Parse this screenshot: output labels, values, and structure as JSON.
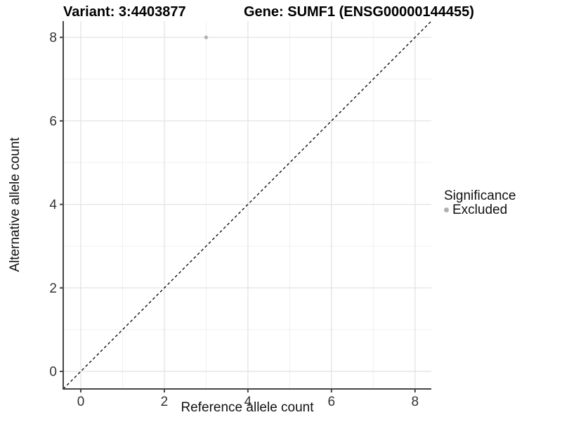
{
  "header": {
    "variant_title": "Variant: 3:4403877",
    "gene_title": "Gene: SUMF1 (ENSG00000144455)"
  },
  "legend": {
    "title": "Significance",
    "items": [
      {
        "label": "Excluded",
        "color": "#b0b0b0"
      }
    ]
  },
  "chart_data": {
    "type": "scatter",
    "title": "Variant: 3:4403877   Gene: SUMF1 (ENSG00000144455)",
    "xlabel": "Reference allele count",
    "ylabel": "Alternative allele count",
    "xlim": [
      -0.42,
      8.39
    ],
    "ylim": [
      -0.42,
      8.39
    ],
    "x_ticks": [
      0,
      2,
      4,
      6,
      8
    ],
    "y_ticks": [
      0,
      2,
      4,
      6,
      8
    ],
    "x_minor_ticks": [
      1,
      3,
      5,
      7
    ],
    "y_minor_ticks": [
      1,
      3,
      5,
      7
    ],
    "grid": "major+minor",
    "legend_position": "right",
    "series": [
      {
        "name": "Excluded",
        "color": "#b0b0b0",
        "marker": "circle",
        "points": [
          {
            "x": 3,
            "y": 8
          }
        ]
      }
    ],
    "reference_line": {
      "type": "abline",
      "slope": 1,
      "intercept": 0,
      "style": "dashed",
      "color": "#000000"
    },
    "colors": {
      "axis_line": "#464646",
      "tick_label": "#333333",
      "grid_major": "#e3e3e3",
      "grid_minor": "#f0f0f0",
      "background": "#ffffff"
    }
  }
}
